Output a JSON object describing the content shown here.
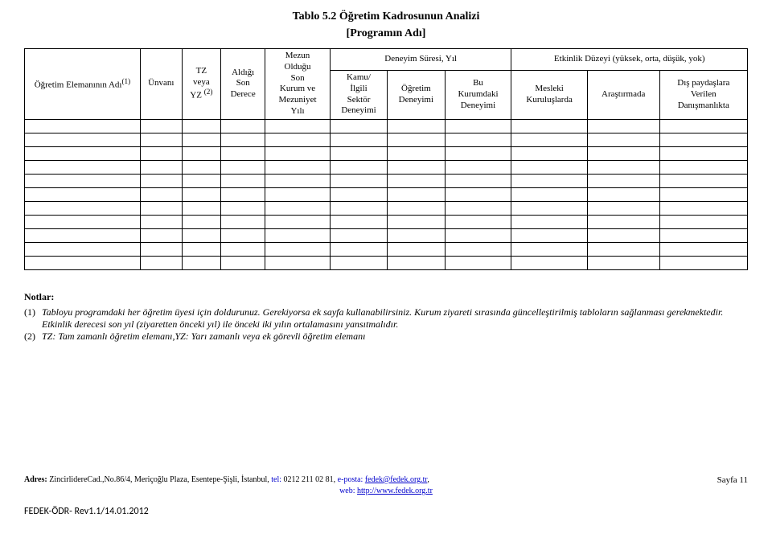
{
  "title": {
    "line1": "Tablo 5.2 Öğretim Kadrosunun Analizi",
    "line2": "[Programın Adı]"
  },
  "table": {
    "headers": {
      "c0": "Öğretim Elemanının Adı",
      "c0_sup": "(1)",
      "c1": "Ünvanı",
      "c2_l1": "TZ",
      "c2_l2": "veya",
      "c2_l3": "YZ ",
      "c2_sup": "(2)",
      "c3_l1": "Aldığı",
      "c3_l2": "Son",
      "c3_l3": "Derece",
      "c4_l1": "Mezun",
      "c4_l2": "Olduğu",
      "c4_l3": "Son",
      "c4_l4": "Kurum ve",
      "c4_l5": "Mezuniyet",
      "c4_l6": "Yılı",
      "grp1": "Deneyim Süresi, Yıl",
      "c5_l1": "Kamu/",
      "c5_l2": "İlgili",
      "c5_l3": "Sektör",
      "c5_l4": "Deneyimi",
      "c6_l1": "Öğretim",
      "c6_l2": "Deneyimi",
      "c7_l1": "Bu",
      "c7_l2": "Kurumdaki",
      "c7_l3": "Deneyimi",
      "grp2": "Etkinlik Düzeyi (yüksek, orta, düşük, yok)",
      "c8_l1": "Mesleki",
      "c8_l2": "Kuruluşlarda",
      "c9": "Araştırmada",
      "c10_l1": "Dış paydaşlara",
      "c10_l2": "Verilen",
      "c10_l3": "Danışmanlıkta"
    },
    "numRows": 11
  },
  "notes": {
    "heading": "Notlar:",
    "items": [
      {
        "num": "(1)",
        "text": "Tabloyu programdaki her öğretim üyesi için doldurunuz. Gerekiyorsa ek sayfa kullanabilirsiniz. Kurum ziyareti sırasında güncelleştirilmiş tabloların sağlanması gerekmektedir. Etkinlik derecesi son yıl (ziyaretten önceki yıl) ile önceki iki yılın ortalamasını yansıtmalıdır."
      },
      {
        "num": "(2)",
        "text": "TZ: Tam zamanlı öğretim elemanı,YZ: Yarı zamanlı veya ek görevli öğretim elemanı"
      }
    ]
  },
  "footer": {
    "addrLabel": "Adres: ",
    "addrText": "ZincirlidereCad.,No.86/4, Meriçoğlu Plaza, Esentepe-Şişli, İstanbul, ",
    "telLabel": "tel: ",
    "telText": "0212 211 02 81, ",
    "emailLabel": "e-posta: ",
    "emailLink": "fedek@fedek.org.tr",
    "emailTail": ",",
    "webLabel": "web: ",
    "webLink": "http://www.fedek.org.tr",
    "page": "Sayfa 11",
    "rev": "FEDEK-ÖDR- Rev1.1/14.01.2012"
  }
}
